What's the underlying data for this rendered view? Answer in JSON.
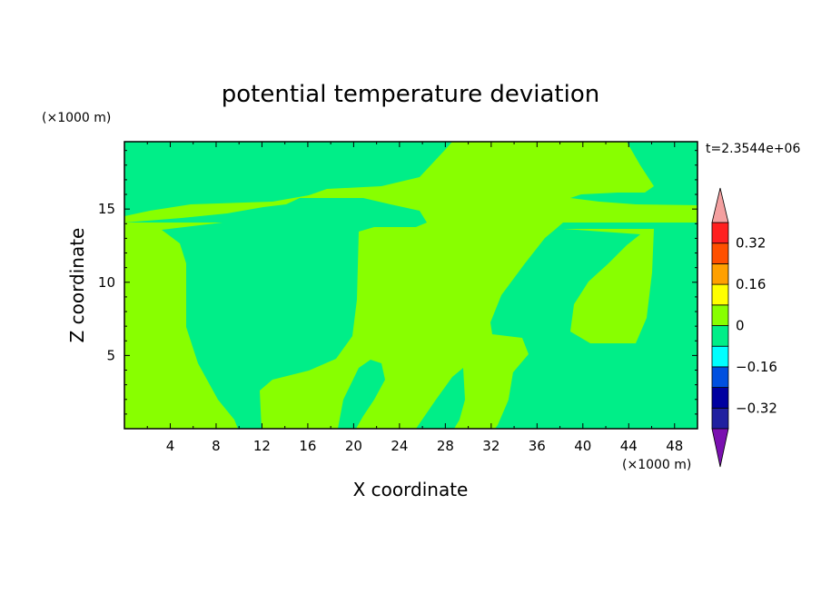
{
  "chart_data": {
    "type": "heatmap",
    "title": "potential temperature deviation",
    "xlabel": "X coordinate",
    "ylabel": "Z coordinate",
    "x_unit": "(×1000 m)",
    "y_unit": "(×1000 m)",
    "time_label": "t=2.3544e+06",
    "xlim": [
      0,
      50
    ],
    "ylim": [
      0,
      19.6
    ],
    "x_ticks": [
      4,
      8,
      12,
      16,
      20,
      24,
      28,
      32,
      36,
      40,
      44,
      48
    ],
    "y_ticks": [
      5,
      10,
      15
    ],
    "colorbar": {
      "levels": [
        -0.4,
        -0.32,
        -0.24,
        -0.16,
        -0.08,
        0,
        0.08,
        0.16,
        0.24,
        0.32,
        0.4
      ],
      "labels": [
        "0.32",
        "0.16",
        "0",
        "-0.16",
        "-0.32"
      ],
      "label_values": [
        0.32,
        0.16,
        0,
        -0.16,
        -0.32
      ],
      "colors_low_to_high": [
        "#2020a0",
        "#0000a0",
        "#0050e0",
        "#00ffff",
        "#00ee88",
        "#88ff00",
        "#ffff00",
        "#ffa000",
        "#ff5000",
        "#ff2020"
      ],
      "under_color": "#7a10b0",
      "over_color": "#f4a0a0",
      "extend": "both"
    },
    "regions": [
      {
        "level_range": [
          -0.08,
          0
        ],
        "color": "#00ee88"
      },
      {
        "level_range": [
          0,
          0.08
        ],
        "color": "#88ff00"
      }
    ],
    "grid": false
  }
}
